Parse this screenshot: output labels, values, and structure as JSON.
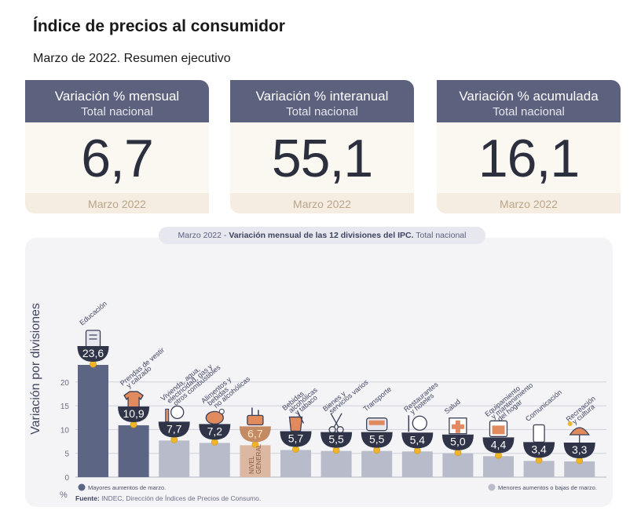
{
  "header": {
    "title": "Índice de precios al consumidor",
    "subtitle": "Marzo de 2022. Resumen ejecutivo"
  },
  "cards": [
    {
      "title": "Variación % mensual",
      "scope": "Total nacional",
      "value": "6,7",
      "period": "Marzo 2022"
    },
    {
      "title": "Variación % interanual",
      "scope": "Total nacional",
      "value": "55,1",
      "period": "Marzo 2022"
    },
    {
      "title": "Variación % acumulada",
      "scope": "Total nacional",
      "value": "16,1",
      "period": "Marzo 2022"
    }
  ],
  "chart_title": {
    "period": "Marzo 2022",
    "sep": " - ",
    "main": "Variación mensual de las 12 divisiones del IPC.",
    "scope": " Total nacional"
  },
  "chart_data": {
    "type": "bar",
    "ylabel": "Variación por divisiones",
    "unit": "%",
    "ylim": [
      0,
      25
    ],
    "yticks": [
      0,
      5,
      10,
      15,
      20
    ],
    "grid": true,
    "categories": [
      [
        "Educación"
      ],
      [
        "Prendas de vestir",
        "y calzado"
      ],
      [
        "Vivienda, agua,",
        "electricidad, gas y",
        "otros combustibles"
      ],
      [
        "Alimentos y",
        "bebidas",
        "no alcohólicas"
      ],
      [
        "NIVEL",
        "GENERAL"
      ],
      [
        "Bebidas",
        "alcohólicas",
        "y tabaco"
      ],
      [
        "Bienes y",
        "servicios varios"
      ],
      [
        "Transporte"
      ],
      [
        "Restaurantes",
        "y hoteles"
      ],
      [
        "Salud"
      ],
      [
        "Equipamiento",
        "y mantenimiento",
        "del hogar"
      ],
      [
        "Comunicación"
      ],
      [
        "Recreación",
        "y cultura"
      ]
    ],
    "values": [
      23.6,
      10.9,
      7.7,
      7.2,
      6.7,
      5.7,
      5.5,
      5.5,
      5.4,
      5.0,
      4.4,
      3.4,
      3.3
    ],
    "value_labels": [
      "23,6",
      "10,9",
      "7,7",
      "7,2",
      "6,7",
      "5,7",
      "5,5",
      "5,5",
      "5,4",
      "5,0",
      "4,4",
      "3,4",
      "3,3"
    ],
    "groups": [
      "mayor",
      "mayor",
      "menor",
      "menor",
      "general",
      "menor",
      "menor",
      "menor",
      "menor",
      "menor",
      "menor",
      "menor",
      "menor"
    ],
    "icons": [
      "book-icon",
      "shirt-icon",
      "bulb-icon",
      "chicken-icon",
      "basket-icon",
      "glass-icon",
      "scissors-icon",
      "bus-icon",
      "fork-icon",
      "medical-cross-icon",
      "oven-icon",
      "phone-icon",
      "umbrella-icon"
    ],
    "colors": {
      "mayor": "#5c6583",
      "menor": "#b8bbc9",
      "general": "#dcb8a2",
      "icon_fill": "#e08a5e",
      "icon_line": "#3a3f55",
      "dot": "#f0b429",
      "bowl": "#2f3448"
    },
    "legend": [
      {
        "label": "Mayores aumentos de marzo.",
        "group": "mayor",
        "position": "bottom-left"
      },
      {
        "label": "Menores aumentos o bajas de marzo.",
        "group": "menor",
        "position": "bottom-right"
      }
    ]
  },
  "source": {
    "label": "Fuente:",
    "text": " INDEC, Dirección de Índices de Precios de Consumo."
  }
}
